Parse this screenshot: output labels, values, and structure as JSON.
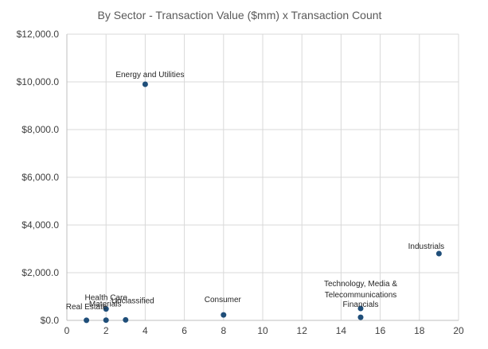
{
  "chart_data": {
    "type": "scatter",
    "title": "By Sector - Transaction Value ($mm) x Transaction Count",
    "xlabel": "",
    "ylabel": "",
    "xlim": [
      0,
      20
    ],
    "ylim": [
      0,
      12000
    ],
    "grid": true,
    "legend": "none",
    "marker_color": "#1f4e79",
    "x_ticks": [
      0,
      2,
      4,
      6,
      8,
      10,
      12,
      14,
      16,
      18,
      20
    ],
    "x_tick_labels": [
      "0",
      "2",
      "4",
      "6",
      "8",
      "10",
      "12",
      "14",
      "16",
      "18",
      "20"
    ],
    "y_ticks": [
      0,
      2000,
      4000,
      6000,
      8000,
      10000,
      12000
    ],
    "y_tick_labels": [
      "$0.0",
      "$2,000.0",
      "$4,000.0",
      "$6,000.0",
      "$8,000.0",
      "$10,000.0",
      "$12,000.0"
    ],
    "points": [
      {
        "label": "Energy and Utilities",
        "x": 4,
        "y": 9900
      },
      {
        "label": "Industrials",
        "x": 19,
        "y": 2800
      },
      {
        "label": "Technology, Media & Telecommunications",
        "x": 15,
        "y": 500
      },
      {
        "label": "Financials",
        "x": 15,
        "y": 130
      },
      {
        "label": "Consumer",
        "x": 8,
        "y": 230
      },
      {
        "label": "Health Care",
        "x": 2,
        "y": 480
      },
      {
        "label": "Unclassified",
        "x": 3,
        "y": 20
      },
      {
        "label": "Materials",
        "x": 2,
        "y": 10
      },
      {
        "label": "Real Estate",
        "x": 1,
        "y": 5
      }
    ]
  }
}
